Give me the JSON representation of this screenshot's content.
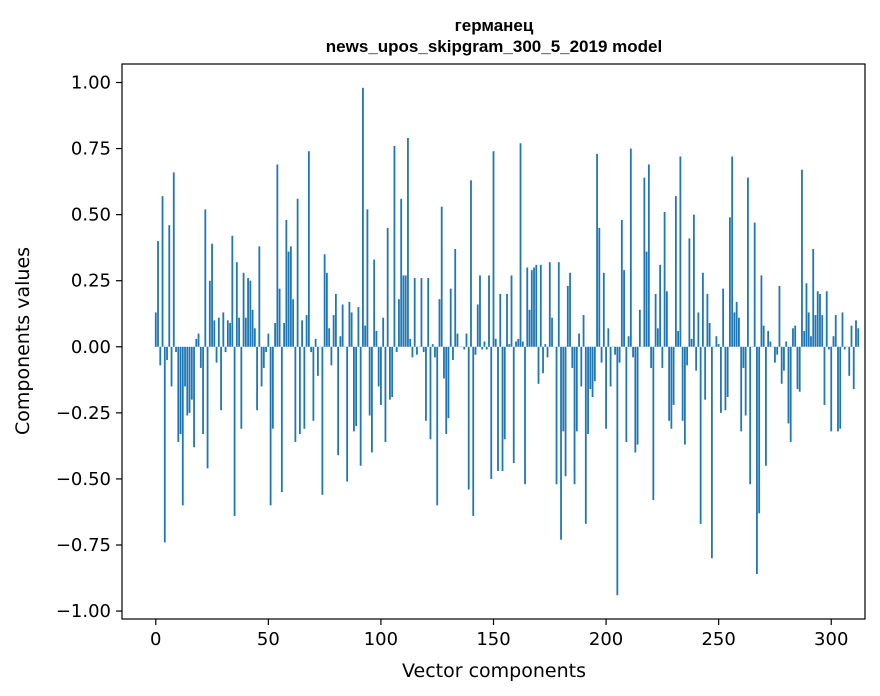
{
  "chart_data": {
    "type": "bar",
    "title": "германец",
    "subtitle": "news_upos_skipgram_300_5_2019 model",
    "xlabel": "Vector components",
    "ylabel": "Components values",
    "xlim": [
      -15,
      315
    ],
    "ylim": [
      -1.03,
      1.07
    ],
    "xticks": [
      0,
      50,
      100,
      150,
      200,
      250,
      300
    ],
    "yticks": [
      -1.0,
      -0.75,
      -0.5,
      -0.25,
      0.0,
      0.25,
      0.5,
      0.75,
      1.0
    ],
    "ytick_labels": [
      "−1.00",
      "−0.75",
      "−0.50",
      "−0.25",
      "0.00",
      "0.25",
      "0.50",
      "0.75",
      "1.00"
    ],
    "grid": false,
    "bar_color": "#1f77b4",
    "values": [
      0.13,
      0.4,
      -0.07,
      0.57,
      -0.74,
      -0.05,
      0.46,
      -0.15,
      0.66,
      -0.02,
      -0.36,
      -0.33,
      -0.6,
      -0.15,
      -0.26,
      -0.25,
      -0.2,
      -0.38,
      0.03,
      0.05,
      -0.08,
      -0.33,
      0.52,
      -0.46,
      0.25,
      0.39,
      0.1,
      -0.06,
      0.11,
      -0.24,
      0.13,
      -0.02,
      0.1,
      0.09,
      0.42,
      -0.64,
      0.32,
      0.11,
      -0.31,
      0.28,
      0.11,
      0.26,
      0.25,
      0.14,
      0.07,
      -0.24,
      0.38,
      -0.15,
      -0.08,
      -0.02,
      0.05,
      -0.6,
      -0.31,
      0.09,
      0.69,
      0.22,
      -0.55,
      0.09,
      0.48,
      0.36,
      0.38,
      0.18,
      -0.36,
      0.56,
      -0.33,
      0.1,
      -0.31,
      0.12,
      0.74,
      -0.02,
      -0.28,
      0.03,
      -0.11,
      0.0,
      -0.56,
      0.35,
      0.28,
      0.07,
      -0.07,
      0.12,
      0.2,
      -0.41,
      0.04,
      0.16,
      0.0,
      -0.51,
      0.17,
      0.13,
      -0.32,
      -0.3,
      0.15,
      -0.45,
      0.98,
      0.08,
      0.52,
      -0.26,
      -0.4,
      0.33,
      0.06,
      -0.15,
      -0.22,
      0.11,
      -0.36,
      0.45,
      -0.2,
      -0.19,
      0.76,
      -0.02,
      0.18,
      0.56,
      0.27,
      0.27,
      0.79,
      0.03,
      -0.04,
      0.26,
      -0.03,
      0.0,
      0.26,
      -0.02,
      -0.28,
      0.26,
      -0.35,
      0.01,
      -0.04,
      -0.6,
      0.18,
      0.53,
      -0.12,
      -0.33,
      -0.27,
      0.22,
      -0.05,
      0.37,
      0.05,
      0.0,
      0.0,
      -0.01,
      0.05,
      -0.54,
      0.63,
      -0.64,
      -0.03,
      0.16,
      0.27,
      -0.01,
      0.02,
      -0.01,
      0.27,
      -0.5,
      0.74,
      0.03,
      -0.47,
      0.2,
      -0.47,
      -0.35,
      0.2,
      0.01,
      0.27,
      -0.44,
      0.02,
      0.03,
      0.77,
      0.02,
      -0.52,
      0.3,
      0.14,
      0.29,
      0.3,
      0.31,
      -0.14,
      0.31,
      -0.1,
      0.01,
      -0.04,
      0.32,
      0.11,
      0.0,
      -0.52,
      0.32,
      -0.73,
      -0.32,
      -0.49,
      0.23,
      0.28,
      -0.08,
      -0.52,
      -0.32,
      0.05,
      -0.15,
      0.12,
      -0.67,
      -0.33,
      -0.16,
      -0.19,
      -0.13,
      0.73,
      0.45,
      -0.06,
      0.28,
      -0.31,
      0.07,
      -0.15,
      0.0,
      -0.03,
      -0.94,
      -0.06,
      0.48,
      0.29,
      -0.36,
      0.04,
      0.75,
      -0.04,
      -0.4,
      -0.37,
      0.14,
      0.0,
      0.64,
      0.36,
      0.69,
      -0.08,
      -0.58,
      0.2,
      0.07,
      0.31,
      -0.08,
      0.51,
      0.21,
      -0.28,
      -0.31,
      -0.22,
      0.57,
      0.06,
      0.72,
      -0.28,
      -0.37,
      -0.07,
      0.41,
      0.03,
      0.5,
      -0.09,
      0.13,
      -0.67,
      0.28,
      -0.2,
      0.2,
      0.09,
      -0.8,
      0.0,
      0.04,
      0.01,
      -0.25,
      0.22,
      -0.24,
      -0.19,
      0.49,
      0.72,
      0.13,
      0.17,
      0.11,
      -0.32,
      -0.08,
      -0.26,
      0.64,
      -0.52,
      0.0,
      0.47,
      -0.86,
      -0.63,
      0.27,
      0.08,
      -0.45,
      0.06,
      0.02,
      0.0,
      -0.06,
      -0.03,
      0.23,
      -0.14,
      -0.09,
      0.02,
      -0.29,
      -0.36,
      0.07,
      0.08,
      -0.16,
      -0.17,
      0.67,
      0.06,
      0.24,
      0.13,
      0.04,
      0.37,
      0.12,
      0.21,
      0.2,
      0.12,
      -0.22,
      0.21,
      -0.01,
      -0.32,
      0.04,
      0.12,
      -0.32,
      -0.31,
      0.13,
      -0.01,
      0.0,
      -0.11,
      0.08,
      -0.16,
      0.1,
      0.07
    ]
  }
}
